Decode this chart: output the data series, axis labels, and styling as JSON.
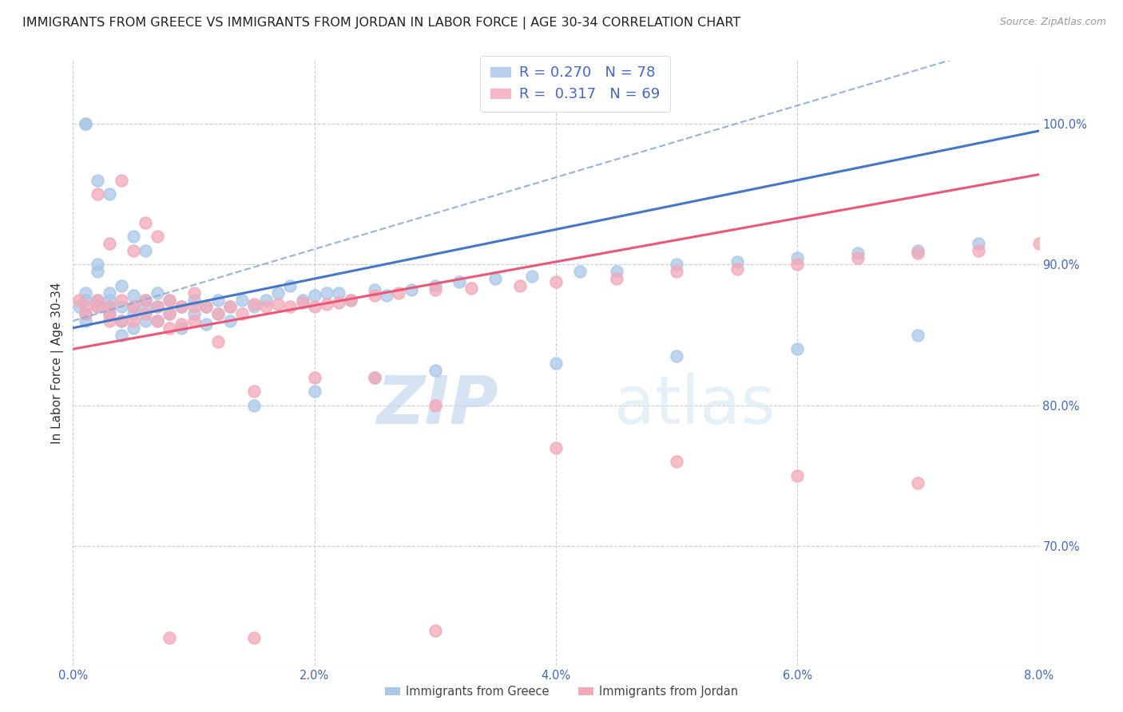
{
  "title": "IMMIGRANTS FROM GREECE VS IMMIGRANTS FROM JORDAN IN LABOR FORCE | AGE 30-34 CORRELATION CHART",
  "source": "Source: ZipAtlas.com",
  "ylabel": "In Labor Force | Age 30-34",
  "legend_label_greece": "Immigrants from Greece",
  "legend_label_jordan": "Immigrants from Jordan",
  "color_greece": "#a8c8e8",
  "color_jordan": "#f4a8b8",
  "color_greece_line": "#4477cc",
  "color_jordan_line": "#ee5577",
  "color_dashed": "#88aad4",
  "R_greece": 0.27,
  "N_greece": 78,
  "R_jordan": 0.317,
  "N_jordan": 69,
  "xlim": [
    0.0,
    0.08
  ],
  "ylim": [
    0.615,
    1.045
  ],
  "right_yticks": [
    1.0,
    0.9,
    0.8,
    0.7
  ],
  "right_ytick_labels": [
    "100.0%",
    "90.0%",
    "80.0%",
    "70.0%"
  ],
  "xtick_vals": [
    0.0,
    0.02,
    0.04,
    0.06,
    0.08
  ],
  "xtick_labels": [
    "0.0%",
    "2.0%",
    "4.0%",
    "6.0%",
    "8.0%"
  ],
  "watermark_zip": "ZIP",
  "watermark_atlas": "atlas",
  "background_color": "#ffffff",
  "grid_color": "#ccccdd",
  "title_fontsize": 11.5,
  "tick_color": "#4466cc",
  "greece_line_intercept": 0.855,
  "greece_line_slope": 1.75,
  "jordan_line_intercept": 0.84,
  "jordan_line_slope": 1.55,
  "dashed_line_intercept": 0.86,
  "dashed_line_slope": 2.55,
  "greece_x": [
    0.0005,
    0.001,
    0.001,
    0.001,
    0.001,
    0.002,
    0.002,
    0.002,
    0.002,
    0.003,
    0.003,
    0.003,
    0.003,
    0.004,
    0.004,
    0.004,
    0.005,
    0.005,
    0.005,
    0.005,
    0.006,
    0.006,
    0.006,
    0.007,
    0.007,
    0.007,
    0.008,
    0.008,
    0.009,
    0.009,
    0.01,
    0.01,
    0.011,
    0.011,
    0.012,
    0.012,
    0.013,
    0.013,
    0.014,
    0.015,
    0.016,
    0.017,
    0.018,
    0.019,
    0.02,
    0.021,
    0.022,
    0.023,
    0.025,
    0.026,
    0.028,
    0.03,
    0.032,
    0.035,
    0.038,
    0.042,
    0.045,
    0.05,
    0.055,
    0.06,
    0.065,
    0.07,
    0.075,
    0.003,
    0.004,
    0.005,
    0.006,
    0.002,
    0.001,
    0.001,
    0.015,
    0.02,
    0.025,
    0.03,
    0.04,
    0.05,
    0.06,
    0.07
  ],
  "greece_y": [
    0.87,
    0.875,
    0.88,
    0.865,
    0.86,
    0.895,
    0.9,
    0.875,
    0.87,
    0.88,
    0.875,
    0.87,
    0.865,
    0.885,
    0.87,
    0.86,
    0.878,
    0.87,
    0.865,
    0.855,
    0.875,
    0.87,
    0.86,
    0.88,
    0.87,
    0.86,
    0.875,
    0.865,
    0.87,
    0.855,
    0.875,
    0.865,
    0.87,
    0.858,
    0.875,
    0.865,
    0.87,
    0.86,
    0.875,
    0.87,
    0.875,
    0.88,
    0.885,
    0.875,
    0.878,
    0.88,
    0.88,
    0.875,
    0.882,
    0.878,
    0.882,
    0.885,
    0.888,
    0.89,
    0.892,
    0.895,
    0.895,
    0.9,
    0.902,
    0.905,
    0.908,
    0.91,
    0.915,
    0.95,
    0.85,
    0.92,
    0.91,
    0.96,
    1.0,
    1.0,
    0.8,
    0.81,
    0.82,
    0.825,
    0.83,
    0.835,
    0.84,
    0.85
  ],
  "jordan_x": [
    0.0005,
    0.001,
    0.001,
    0.002,
    0.002,
    0.003,
    0.003,
    0.003,
    0.004,
    0.004,
    0.005,
    0.005,
    0.006,
    0.006,
    0.007,
    0.007,
    0.008,
    0.008,
    0.009,
    0.009,
    0.01,
    0.01,
    0.011,
    0.012,
    0.013,
    0.014,
    0.015,
    0.016,
    0.017,
    0.018,
    0.019,
    0.02,
    0.021,
    0.022,
    0.023,
    0.025,
    0.027,
    0.03,
    0.033,
    0.037,
    0.04,
    0.045,
    0.05,
    0.055,
    0.06,
    0.065,
    0.07,
    0.075,
    0.08,
    0.002,
    0.003,
    0.004,
    0.005,
    0.006,
    0.007,
    0.008,
    0.01,
    0.012,
    0.015,
    0.02,
    0.025,
    0.03,
    0.04,
    0.05,
    0.06,
    0.07,
    0.008,
    0.015,
    0.03
  ],
  "jordan_y": [
    0.875,
    0.87,
    0.865,
    0.875,
    0.87,
    0.87,
    0.865,
    0.86,
    0.875,
    0.86,
    0.87,
    0.86,
    0.875,
    0.865,
    0.87,
    0.86,
    0.875,
    0.865,
    0.87,
    0.858,
    0.87,
    0.86,
    0.87,
    0.865,
    0.87,
    0.865,
    0.872,
    0.87,
    0.872,
    0.87,
    0.873,
    0.87,
    0.872,
    0.873,
    0.875,
    0.878,
    0.88,
    0.882,
    0.883,
    0.885,
    0.888,
    0.89,
    0.895,
    0.897,
    0.9,
    0.905,
    0.908,
    0.91,
    0.915,
    0.95,
    0.915,
    0.96,
    0.91,
    0.93,
    0.92,
    0.855,
    0.88,
    0.845,
    0.81,
    0.82,
    0.82,
    0.8,
    0.77,
    0.76,
    0.75,
    0.745,
    0.635,
    0.635,
    0.64
  ]
}
